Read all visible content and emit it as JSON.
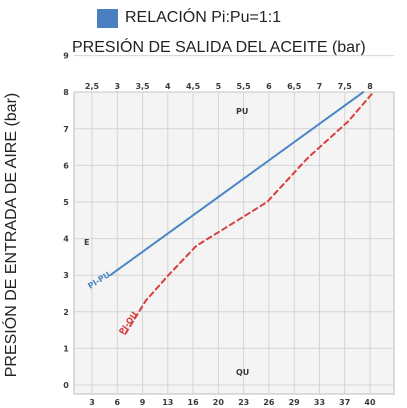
{
  "legend": {
    "label": "RELACIÓN Pi:Pu=1:1",
    "swatch_color": "#4a7fc1"
  },
  "chart_data": {
    "type": "line",
    "top_axis_title": "PRESIÓN DE SALIDA DEL ACEITE (bar)",
    "ylabel": "PRESIÓN DE ENTRADA DE AIRE (bar)",
    "xlabel": "",
    "ylim": [
      0,
      9
    ],
    "y_ticks": [
      "0",
      "1",
      "2",
      "3",
      "4",
      "5",
      "6",
      "7",
      "8",
      "9"
    ],
    "top_ticks": [
      "2,5",
      "3",
      "3,5",
      "4",
      "4,5",
      "5",
      "5,5",
      "6",
      "6,5",
      "7",
      "7,5",
      "8"
    ],
    "bottom_ticks": [
      "3",
      "6",
      "9",
      "13",
      "16",
      "20",
      "23",
      "26",
      "29",
      "33",
      "37",
      "40"
    ],
    "grid": true,
    "annotations": {
      "top_curve": "PU",
      "bottom_curve": "QU",
      "left_marker": "E"
    },
    "series": [
      {
        "name": "PI-PU",
        "color": "#4a86c5",
        "dash": "solid",
        "points": [
          [
            2.9,
            3.0
          ],
          [
            7.9,
            8.0
          ]
        ]
      },
      {
        "name": "PI-QU",
        "color": "#d93f3f",
        "dash": "dashed",
        "points": [
          [
            3.2,
            1.4
          ],
          [
            3.6,
            2.3
          ],
          [
            4.05,
            3.0
          ],
          [
            4.6,
            3.8
          ],
          [
            5.3,
            4.4
          ],
          [
            6.0,
            5.0
          ],
          [
            6.8,
            6.2
          ],
          [
            7.6,
            7.2
          ],
          [
            8.1,
            8.0
          ]
        ]
      }
    ]
  }
}
